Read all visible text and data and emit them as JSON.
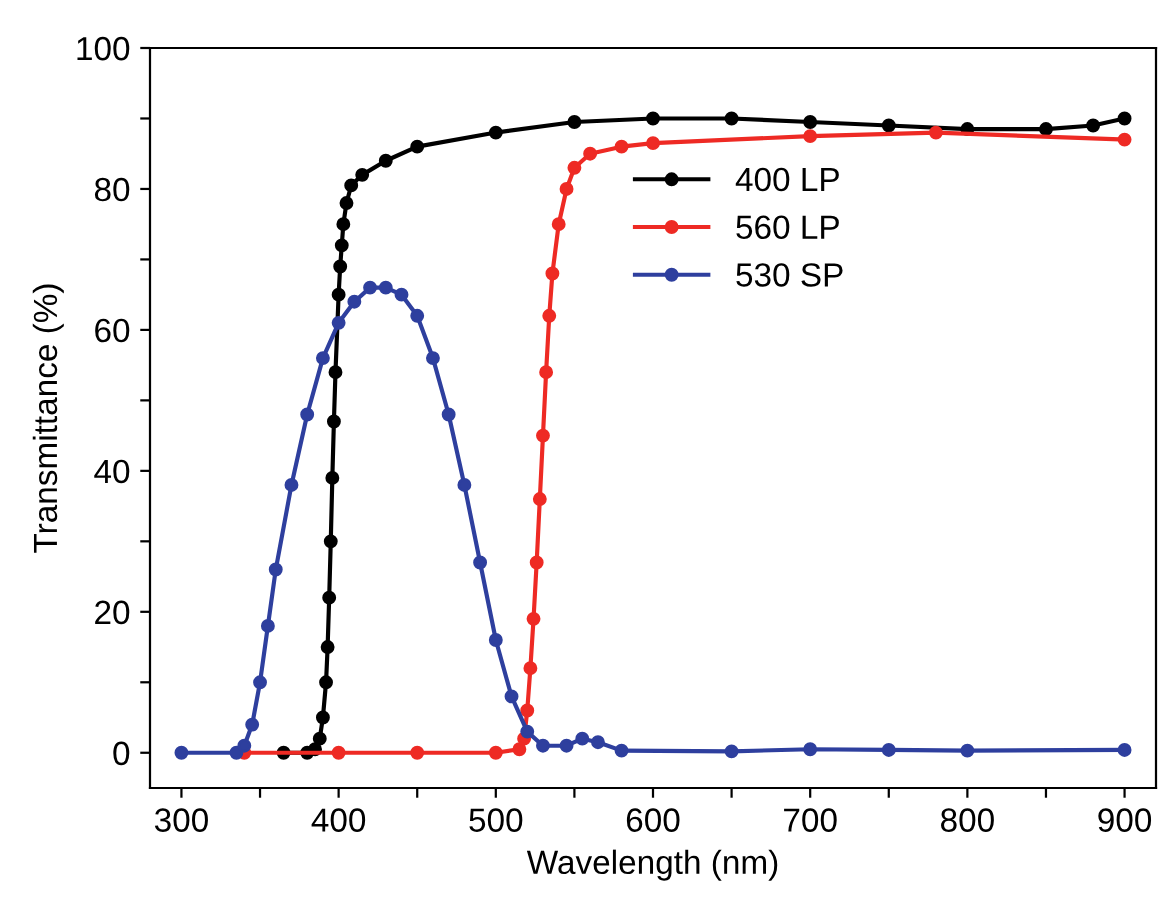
{
  "chart_data": {
    "type": "line",
    "xlabel": "Wavelength (nm)",
    "ylabel": "Transmittance (%)",
    "xlim": [
      280,
      920
    ],
    "ylim": [
      -5,
      100
    ],
    "xticks": [
      300,
      {
        "value": 350,
        "label": null
      },
      400,
      {
        "value": 450,
        "label": null
      },
      500,
      {
        "value": 550,
        "label": null
      },
      600,
      {
        "value": 650,
        "label": null
      },
      700,
      {
        "value": 750,
        "label": null
      },
      800,
      {
        "value": 850,
        "label": null
      },
      900
    ],
    "yticks": [
      0,
      {
        "value": 10,
        "label": null
      },
      20,
      {
        "value": 30,
        "label": null
      },
      40,
      {
        "value": 50,
        "label": null
      },
      60,
      {
        "value": 70,
        "label": null
      },
      80,
      {
        "value": 90,
        "label": null
      },
      100
    ],
    "marker": "circle",
    "line_style": "solid",
    "grid": false,
    "legend": "upper right",
    "series": [
      {
        "name": "400 LP",
        "color": "#000000",
        "x": [
          365,
          380,
          385,
          388,
          390,
          392,
          393,
          394,
          395,
          396,
          397,
          398,
          400,
          401,
          402,
          403,
          405,
          408,
          415,
          430,
          450,
          500,
          550,
          600,
          650,
          700,
          750,
          800,
          850,
          880,
          900
        ],
        "values": [
          0,
          0,
          0.5,
          2,
          5,
          10,
          15,
          22,
          30,
          39,
          47,
          54,
          65,
          69,
          72,
          75,
          78,
          80.5,
          82,
          84,
          86,
          88,
          89.5,
          90,
          90,
          89.5,
          89,
          88.5,
          88.5,
          89,
          90
        ]
      },
      {
        "name": "560 LP",
        "color": "#ee2a24",
        "x": [
          340,
          400,
          450,
          500,
          515,
          518,
          520,
          522,
          524,
          526,
          528,
          530,
          532,
          534,
          536,
          540,
          545,
          550,
          560,
          580,
          600,
          700,
          780,
          900
        ],
        "values": [
          0,
          0,
          0,
          0,
          0.5,
          2,
          6,
          12,
          19,
          27,
          36,
          45,
          54,
          62,
          68,
          75,
          80,
          83,
          85,
          86,
          86.5,
          87.5,
          88,
          87
        ]
      },
      {
        "name": "530 SP",
        "color": "#2e3f9e",
        "x": [
          300,
          335,
          340,
          345,
          350,
          355,
          360,
          370,
          380,
          390,
          400,
          410,
          420,
          430,
          440,
          450,
          460,
          470,
          480,
          490,
          500,
          510,
          520,
          530,
          545,
          555,
          565,
          580,
          650,
          700,
          750,
          800,
          900
        ],
        "values": [
          0,
          0,
          1,
          4,
          10,
          18,
          26,
          38,
          48,
          56,
          61,
          64,
          66,
          66,
          65,
          62,
          56,
          48,
          38,
          27,
          16,
          8,
          3,
          1,
          1,
          2,
          1.5,
          0.3,
          0.2,
          0.5,
          0.4,
          0.3,
          0.4
        ]
      }
    ]
  }
}
